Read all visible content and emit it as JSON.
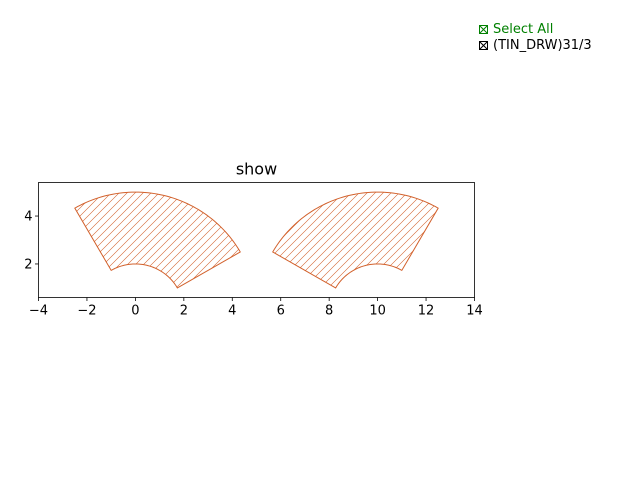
{
  "legend": {
    "select_all_label": "Select All",
    "series_label": "(TIN_DRW)31/3",
    "select_all_color": "#008000",
    "series_color": "#000000"
  },
  "chart_data": {
    "type": "area",
    "title": "show",
    "xlabel": "",
    "ylabel": "",
    "xlim": [
      -4,
      14
    ],
    "ylim": [
      0.6,
      5.4
    ],
    "xticks": [
      -4,
      -2,
      0,
      2,
      4,
      6,
      8,
      10,
      12,
      14
    ],
    "xtick_labels": [
      "−4",
      "−2",
      "0",
      "2",
      "4",
      "6",
      "8",
      "10",
      "12",
      14
    ],
    "yticks": [
      2,
      4
    ],
    "ytick_labels": [
      "2",
      "4"
    ],
    "grid": false,
    "legend_position": "top-right",
    "edge_color": "#d2612c",
    "hatch": "diagonal",
    "series": [
      {
        "name": "(TIN_DRW)31/3",
        "shapes": [
          {
            "shape": "annular-sector",
            "center": [
              0,
              0
            ],
            "inner_radius": 2,
            "outer_radius": 5,
            "theta_start_deg": 30,
            "theta_end_deg": 120
          },
          {
            "shape": "annular-sector",
            "center": [
              10,
              0
            ],
            "inner_radius": 2,
            "outer_radius": 5,
            "theta_start_deg": 60,
            "theta_end_deg": 150
          }
        ]
      }
    ]
  }
}
